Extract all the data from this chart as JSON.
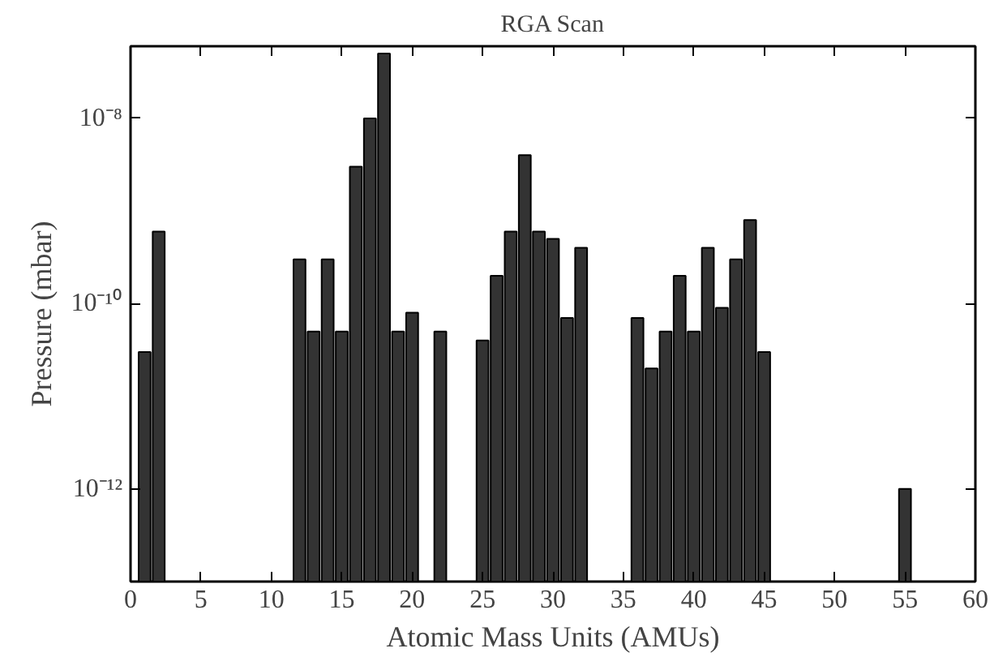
{
  "chart_data": {
    "type": "bar",
    "title": "RGA Scan",
    "xlabel": "Atomic Mass Units (AMUs)",
    "ylabel": "Pressure (mbar)",
    "x": [
      1,
      2,
      12,
      13,
      14,
      15,
      16,
      17,
      18,
      19,
      20,
      22,
      25,
      26,
      27,
      28,
      29,
      30,
      31,
      32,
      36,
      37,
      38,
      39,
      40,
      41,
      42,
      43,
      44,
      45,
      55
    ],
    "values": [
      3e-11,
      6e-10,
      3e-10,
      5e-11,
      3e-10,
      5e-11,
      3e-09,
      1e-08,
      5e-08,
      5e-11,
      8e-11,
      5e-11,
      4e-11,
      2e-10,
      6e-10,
      4e-09,
      6e-10,
      5e-10,
      7e-11,
      4e-10,
      7e-11,
      2e-11,
      5e-11,
      2e-10,
      5e-11,
      4e-10,
      9e-11,
      3e-10,
      8e-10,
      3e-11,
      1e-12
    ],
    "color": "#333333",
    "log": "y",
    "grid": false,
    "xlim": [
      0,
      60
    ],
    "xticks": [
      0,
      5,
      10,
      15,
      20,
      25,
      30,
      35,
      40,
      45,
      50,
      55,
      60
    ],
    "ylim": [
      1e-13,
      6e-08
    ],
    "yticks": [
      {
        "value": 1e-12,
        "label": "10⁻¹²"
      },
      {
        "value": 1e-10,
        "label": "10⁻¹⁰"
      },
      {
        "value": 1e-08,
        "label": "10⁻⁸"
      }
    ]
  }
}
